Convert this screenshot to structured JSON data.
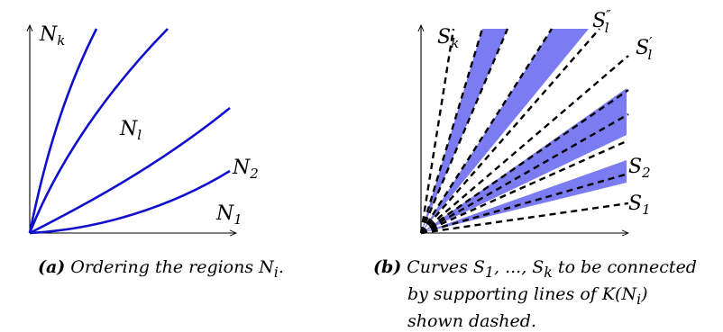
{
  "panel_a": {
    "labels": {
      "nk": {
        "base": "N",
        "sub": "k"
      },
      "nl": {
        "base": "N",
        "sub": "l"
      },
      "n2": {
        "base": "N",
        "sub": "2"
      },
      "n1": {
        "base": "N",
        "sub": "1"
      }
    },
    "caption": {
      "tag": "(a)",
      "text": "Ordering the regions N",
      "sub": "i",
      "end": "."
    }
  },
  "panel_b": {
    "labels": {
      "sk": {
        "base": "S",
        "sub": "k",
        "sup": ""
      },
      "sl2": {
        "base": "S",
        "sub": "l",
        "sup": "″"
      },
      "sl1": {
        "base": "S",
        "sub": "l",
        "sup": "′"
      },
      "s2": {
        "base": "S",
        "sub": "2",
        "sup": ""
      },
      "s1": {
        "base": "S",
        "sub": "1",
        "sup": ""
      }
    },
    "caption": {
      "tag": "(b)",
      "line1": "Curves S",
      "line1b": ", ..., S",
      "line1c": " to be connected",
      "line2": "by supporting lines of K(N",
      "line2b": ")",
      "line3": "shown dashed."
    }
  },
  "colors": {
    "curve": "#1010cc",
    "band": "#7b7bf2",
    "axis": "#000000"
  }
}
